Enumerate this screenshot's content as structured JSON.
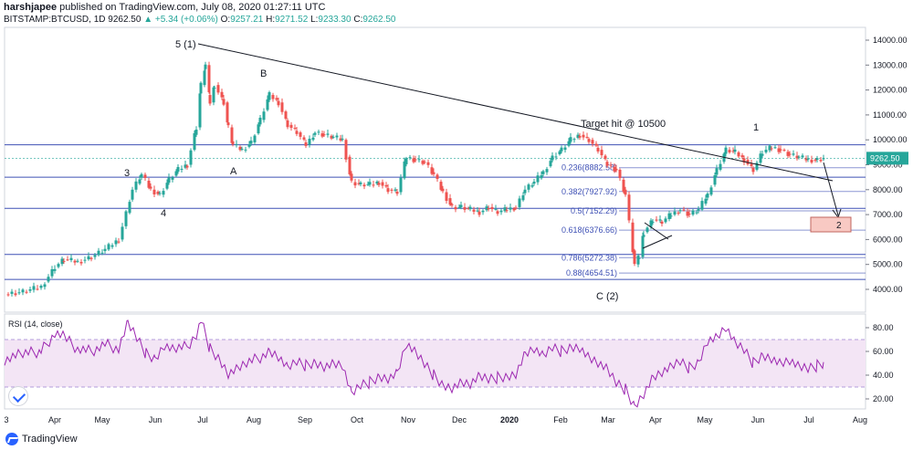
{
  "header": {
    "author": "harshjapee",
    "published": "published on TradingView.com, July 08, 2020 01:27:11 UTC",
    "symbol": "BITSTAMP:BTCUSD, 1D",
    "last": "9262.50",
    "change": "▲ +5.34 (+0.06%)",
    "o_label": "O:",
    "o": "9257.21",
    "h_label": "H:",
    "h": "9271.52",
    "l_label": "L:",
    "l": "9233.30",
    "c_label": "C:",
    "c": "9262.50"
  },
  "price_tag": "9262.50",
  "rsi_label": "RSI (14, close)",
  "footer_brand": "TradingView",
  "colors": {
    "up": "#26a69a",
    "down": "#ef5350",
    "fib": "#3f51b5",
    "rsi": "#9c27b0",
    "rsi_band": "#f3e5f5",
    "target_box": "#f8c9c3"
  },
  "annotations": {
    "w5_1": "5 (1)",
    "b": "B",
    "a": "A",
    "w3": "3",
    "w4": "4",
    "target": "Target hit @ 10500",
    "w1": "1",
    "c2": "C (2)",
    "w2": "2"
  },
  "chart_data": {
    "type": "candlestick",
    "x_ticks": [
      "3",
      "Apr",
      "May",
      "Jun",
      "Jul",
      "Aug",
      "Sep",
      "Oct",
      "Nov",
      "Dec",
      "2020",
      "Feb",
      "Mar",
      "Apr",
      "May",
      "Jun",
      "Jul",
      "Aug"
    ],
    "price_ticks": [
      "14000.00",
      "13000.00",
      "12000.00",
      "11000.00",
      "10000.00",
      "9000.00",
      "8000.00",
      "7000.00",
      "6000.00",
      "5000.00",
      "4000.00"
    ],
    "rsi_ticks": [
      "80.00",
      "60.00",
      "40.00",
      "20.00"
    ],
    "fib_levels": [
      {
        "label": "0.236(8882.58)",
        "value": 8882.58
      },
      {
        "label": "0.382(7927.92)",
        "value": 7927.92
      },
      {
        "label": "0.5(7152.29)",
        "value": 7152.29
      },
      {
        "label": "0.618(6376.66)",
        "value": 6376.66
      },
      {
        "label": "0.786(5272.38)",
        "value": 5272.38
      },
      {
        "label": "0.88(4654.51)",
        "value": 4654.51
      }
    ],
    "horizontal_levels": [
      9800,
      8500,
      7250,
      5400,
      4400
    ],
    "price_path": [
      [
        0,
        3800
      ],
      [
        20,
        3900
      ],
      [
        40,
        4100
      ],
      [
        55,
        4900
      ],
      [
        65,
        5200
      ],
      [
        80,
        5100
      ],
      [
        95,
        5300
      ],
      [
        110,
        5600
      ],
      [
        125,
        6000
      ],
      [
        140,
        8000
      ],
      [
        150,
        8600
      ],
      [
        160,
        8000
      ],
      [
        170,
        7800
      ],
      [
        180,
        8400
      ],
      [
        190,
        8800
      ],
      [
        200,
        9000
      ],
      [
        210,
        10500
      ],
      [
        215,
        12200
      ],
      [
        220,
        13000
      ],
      [
        225,
        11500
      ],
      [
        230,
        12200
      ],
      [
        240,
        11500
      ],
      [
        245,
        10500
      ],
      [
        250,
        9800
      ],
      [
        260,
        9600
      ],
      [
        270,
        9900
      ],
      [
        280,
        10800
      ],
      [
        290,
        11800
      ],
      [
        300,
        11500
      ],
      [
        310,
        10600
      ],
      [
        320,
        10300
      ],
      [
        330,
        9800
      ],
      [
        340,
        10300
      ],
      [
        350,
        10200
      ],
      [
        360,
        10100
      ],
      [
        370,
        10000
      ],
      [
        380,
        8300
      ],
      [
        390,
        8200
      ],
      [
        400,
        8200
      ],
      [
        410,
        8300
      ],
      [
        420,
        8000
      ],
      [
        430,
        7900
      ],
      [
        440,
        9300
      ],
      [
        450,
        9200
      ],
      [
        460,
        9100
      ],
      [
        470,
        8600
      ],
      [
        480,
        7900
      ],
      [
        490,
        7300
      ],
      [
        500,
        7300
      ],
      [
        510,
        7200
      ],
      [
        520,
        7100
      ],
      [
        530,
        7300
      ],
      [
        540,
        7100
      ],
      [
        550,
        7200
      ],
      [
        560,
        7300
      ],
      [
        570,
        8000
      ],
      [
        580,
        8300
      ],
      [
        590,
        8700
      ],
      [
        600,
        9300
      ],
      [
        610,
        9600
      ],
      [
        620,
        10000
      ],
      [
        630,
        10200
      ],
      [
        640,
        10000
      ],
      [
        650,
        9600
      ],
      [
        660,
        9000
      ],
      [
        670,
        8800
      ],
      [
        680,
        7800
      ],
      [
        690,
        5000
      ],
      [
        695,
        5300
      ],
      [
        700,
        6300
      ],
      [
        710,
        6800
      ],
      [
        720,
        6700
      ],
      [
        730,
        7000
      ],
      [
        740,
        7200
      ],
      [
        750,
        7000
      ],
      [
        760,
        7200
      ],
      [
        770,
        7800
      ],
      [
        780,
        8800
      ],
      [
        790,
        9600
      ],
      [
        800,
        9500
      ],
      [
        810,
        9200
      ],
      [
        820,
        8800
      ],
      [
        830,
        9500
      ],
      [
        840,
        9700
      ],
      [
        850,
        9600
      ],
      [
        860,
        9400
      ],
      [
        870,
        9300
      ],
      [
        880,
        9200
      ],
      [
        890,
        9200
      ],
      [
        897,
        9262
      ]
    ],
    "rsi_path": [
      [
        0,
        53
      ],
      [
        20,
        58
      ],
      [
        40,
        60
      ],
      [
        55,
        75
      ],
      [
        65,
        72
      ],
      [
        80,
        62
      ],
      [
        95,
        60
      ],
      [
        110,
        66
      ],
      [
        125,
        62
      ],
      [
        135,
        83
      ],
      [
        145,
        70
      ],
      [
        155,
        58
      ],
      [
        165,
        55
      ],
      [
        175,
        66
      ],
      [
        185,
        62
      ],
      [
        200,
        64
      ],
      [
        210,
        75
      ],
      [
        215,
        86
      ],
      [
        225,
        62
      ],
      [
        235,
        55
      ],
      [
        245,
        42
      ],
      [
        255,
        46
      ],
      [
        265,
        50
      ],
      [
        280,
        55
      ],
      [
        290,
        60
      ],
      [
        300,
        55
      ],
      [
        310,
        45
      ],
      [
        320,
        50
      ],
      [
        330,
        48
      ],
      [
        340,
        52
      ],
      [
        350,
        48
      ],
      [
        360,
        50
      ],
      [
        370,
        48
      ],
      [
        380,
        23
      ],
      [
        390,
        30
      ],
      [
        400,
        34
      ],
      [
        410,
        40
      ],
      [
        420,
        38
      ],
      [
        430,
        42
      ],
      [
        440,
        66
      ],
      [
        450,
        58
      ],
      [
        460,
        48
      ],
      [
        470,
        40
      ],
      [
        480,
        33
      ],
      [
        490,
        30
      ],
      [
        500,
        34
      ],
      [
        510,
        32
      ],
      [
        520,
        38
      ],
      [
        530,
        35
      ],
      [
        540,
        38
      ],
      [
        550,
        40
      ],
      [
        560,
        42
      ],
      [
        570,
        58
      ],
      [
        580,
        62
      ],
      [
        590,
        55
      ],
      [
        600,
        62
      ],
      [
        610,
        60
      ],
      [
        620,
        65
      ],
      [
        630,
        64
      ],
      [
        640,
        55
      ],
      [
        650,
        50
      ],
      [
        660,
        44
      ],
      [
        670,
        32
      ],
      [
        680,
        28
      ],
      [
        690,
        15
      ],
      [
        700,
        25
      ],
      [
        710,
        38
      ],
      [
        720,
        42
      ],
      [
        730,
        46
      ],
      [
        740,
        50
      ],
      [
        750,
        46
      ],
      [
        760,
        52
      ],
      [
        770,
        70
      ],
      [
        780,
        72
      ],
      [
        790,
        80
      ],
      [
        800,
        66
      ],
      [
        810,
        60
      ],
      [
        820,
        50
      ],
      [
        830,
        58
      ],
      [
        840,
        55
      ],
      [
        850,
        50
      ],
      [
        860,
        52
      ],
      [
        870,
        46
      ],
      [
        880,
        44
      ],
      [
        890,
        48
      ],
      [
        897,
        51
      ]
    ]
  }
}
